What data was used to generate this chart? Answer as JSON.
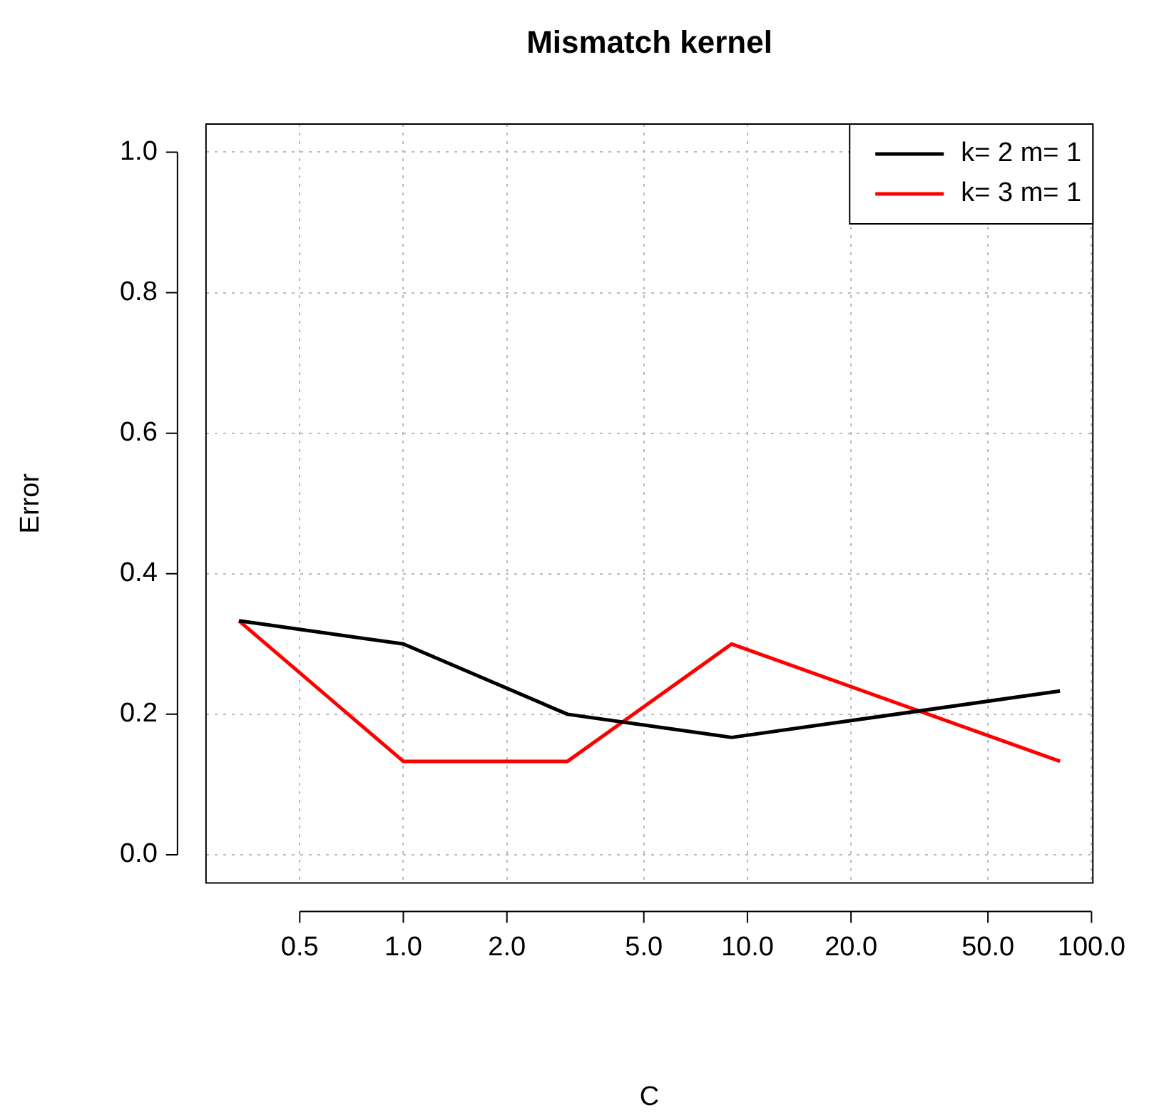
{
  "chart_data": {
    "type": "line",
    "title": "Mismatch kernel",
    "xlabel": "C",
    "ylabel": "Error",
    "x": [
      0.333,
      1,
      3,
      9,
      81
    ],
    "series": [
      {
        "name": "k= 2 m= 1",
        "color": "#000000",
        "values": [
          0.333,
          0.3,
          0.2,
          0.167,
          0.233
        ]
      },
      {
        "name": "k= 3 m= 1",
        "color": "#ff0000",
        "values": [
          0.333,
          0.133,
          0.133,
          0.3,
          0.133
        ]
      }
    ],
    "log": "x",
    "xlim": [
      0.267,
      100.9
    ],
    "ylim": [
      -0.04,
      1.04
    ],
    "xticks": [
      {
        "value": 0.5,
        "label": "0.5"
      },
      {
        "value": 1,
        "label": "1.0"
      },
      {
        "value": 2,
        "label": "2.0"
      },
      {
        "value": 5,
        "label": "5.0"
      },
      {
        "value": 10,
        "label": "10.0"
      },
      {
        "value": 20,
        "label": "20.0"
      },
      {
        "value": 50,
        "label": "50.0"
      },
      {
        "value": 100,
        "label": "100.0"
      }
    ],
    "yticks": [
      {
        "value": 0,
        "label": "0.0"
      },
      {
        "value": 0.2,
        "label": "0.2"
      },
      {
        "value": 0.4,
        "label": "0.4"
      },
      {
        "value": 0.6,
        "label": "0.6"
      },
      {
        "value": 0.8,
        "label": "0.8"
      },
      {
        "value": 1,
        "label": "1.0"
      }
    ],
    "grid": true,
    "legend": "top right",
    "marker": "none",
    "line_style": "solid"
  }
}
